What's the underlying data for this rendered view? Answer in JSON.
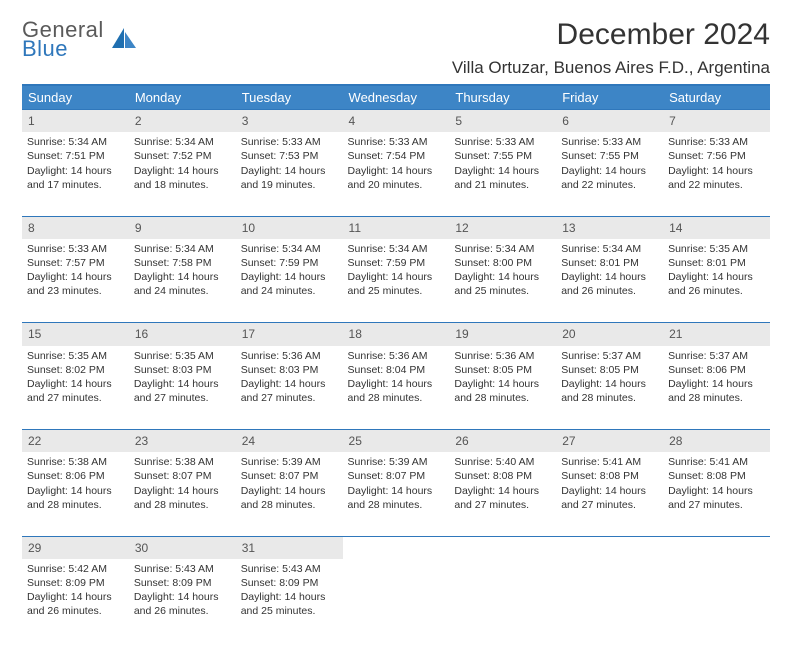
{
  "brand": {
    "line1": "General",
    "line2": "Blue",
    "logo_fill": "#1f6fb0"
  },
  "colors": {
    "header_bg": "#3d85c6",
    "header_text": "#ffffff",
    "border": "#2f77bb",
    "daynum_bg": "#e9e9e9",
    "text": "#333333"
  },
  "title": "December 2024",
  "location": "Villa Ortuzar, Buenos Aires F.D., Argentina",
  "weekdays": [
    "Sunday",
    "Monday",
    "Tuesday",
    "Wednesday",
    "Thursday",
    "Friday",
    "Saturday"
  ],
  "weeks": [
    {
      "nums": [
        "1",
        "2",
        "3",
        "4",
        "5",
        "6",
        "7"
      ],
      "cells": [
        {
          "sunrise": "Sunrise: 5:34 AM",
          "sunset": "Sunset: 7:51 PM",
          "day1": "Daylight: 14 hours",
          "day2": "and 17 minutes."
        },
        {
          "sunrise": "Sunrise: 5:34 AM",
          "sunset": "Sunset: 7:52 PM",
          "day1": "Daylight: 14 hours",
          "day2": "and 18 minutes."
        },
        {
          "sunrise": "Sunrise: 5:33 AM",
          "sunset": "Sunset: 7:53 PM",
          "day1": "Daylight: 14 hours",
          "day2": "and 19 minutes."
        },
        {
          "sunrise": "Sunrise: 5:33 AM",
          "sunset": "Sunset: 7:54 PM",
          "day1": "Daylight: 14 hours",
          "day2": "and 20 minutes."
        },
        {
          "sunrise": "Sunrise: 5:33 AM",
          "sunset": "Sunset: 7:55 PM",
          "day1": "Daylight: 14 hours",
          "day2": "and 21 minutes."
        },
        {
          "sunrise": "Sunrise: 5:33 AM",
          "sunset": "Sunset: 7:55 PM",
          "day1": "Daylight: 14 hours",
          "day2": "and 22 minutes."
        },
        {
          "sunrise": "Sunrise: 5:33 AM",
          "sunset": "Sunset: 7:56 PM",
          "day1": "Daylight: 14 hours",
          "day2": "and 22 minutes."
        }
      ]
    },
    {
      "nums": [
        "8",
        "9",
        "10",
        "11",
        "12",
        "13",
        "14"
      ],
      "cells": [
        {
          "sunrise": "Sunrise: 5:33 AM",
          "sunset": "Sunset: 7:57 PM",
          "day1": "Daylight: 14 hours",
          "day2": "and 23 minutes."
        },
        {
          "sunrise": "Sunrise: 5:34 AM",
          "sunset": "Sunset: 7:58 PM",
          "day1": "Daylight: 14 hours",
          "day2": "and 24 minutes."
        },
        {
          "sunrise": "Sunrise: 5:34 AM",
          "sunset": "Sunset: 7:59 PM",
          "day1": "Daylight: 14 hours",
          "day2": "and 24 minutes."
        },
        {
          "sunrise": "Sunrise: 5:34 AM",
          "sunset": "Sunset: 7:59 PM",
          "day1": "Daylight: 14 hours",
          "day2": "and 25 minutes."
        },
        {
          "sunrise": "Sunrise: 5:34 AM",
          "sunset": "Sunset: 8:00 PM",
          "day1": "Daylight: 14 hours",
          "day2": "and 25 minutes."
        },
        {
          "sunrise": "Sunrise: 5:34 AM",
          "sunset": "Sunset: 8:01 PM",
          "day1": "Daylight: 14 hours",
          "day2": "and 26 minutes."
        },
        {
          "sunrise": "Sunrise: 5:35 AM",
          "sunset": "Sunset: 8:01 PM",
          "day1": "Daylight: 14 hours",
          "day2": "and 26 minutes."
        }
      ]
    },
    {
      "nums": [
        "15",
        "16",
        "17",
        "18",
        "19",
        "20",
        "21"
      ],
      "cells": [
        {
          "sunrise": "Sunrise: 5:35 AM",
          "sunset": "Sunset: 8:02 PM",
          "day1": "Daylight: 14 hours",
          "day2": "and 27 minutes."
        },
        {
          "sunrise": "Sunrise: 5:35 AM",
          "sunset": "Sunset: 8:03 PM",
          "day1": "Daylight: 14 hours",
          "day2": "and 27 minutes."
        },
        {
          "sunrise": "Sunrise: 5:36 AM",
          "sunset": "Sunset: 8:03 PM",
          "day1": "Daylight: 14 hours",
          "day2": "and 27 minutes."
        },
        {
          "sunrise": "Sunrise: 5:36 AM",
          "sunset": "Sunset: 8:04 PM",
          "day1": "Daylight: 14 hours",
          "day2": "and 28 minutes."
        },
        {
          "sunrise": "Sunrise: 5:36 AM",
          "sunset": "Sunset: 8:05 PM",
          "day1": "Daylight: 14 hours",
          "day2": "and 28 minutes."
        },
        {
          "sunrise": "Sunrise: 5:37 AM",
          "sunset": "Sunset: 8:05 PM",
          "day1": "Daylight: 14 hours",
          "day2": "and 28 minutes."
        },
        {
          "sunrise": "Sunrise: 5:37 AM",
          "sunset": "Sunset: 8:06 PM",
          "day1": "Daylight: 14 hours",
          "day2": "and 28 minutes."
        }
      ]
    },
    {
      "nums": [
        "22",
        "23",
        "24",
        "25",
        "26",
        "27",
        "28"
      ],
      "cells": [
        {
          "sunrise": "Sunrise: 5:38 AM",
          "sunset": "Sunset: 8:06 PM",
          "day1": "Daylight: 14 hours",
          "day2": "and 28 minutes."
        },
        {
          "sunrise": "Sunrise: 5:38 AM",
          "sunset": "Sunset: 8:07 PM",
          "day1": "Daylight: 14 hours",
          "day2": "and 28 minutes."
        },
        {
          "sunrise": "Sunrise: 5:39 AM",
          "sunset": "Sunset: 8:07 PM",
          "day1": "Daylight: 14 hours",
          "day2": "and 28 minutes."
        },
        {
          "sunrise": "Sunrise: 5:39 AM",
          "sunset": "Sunset: 8:07 PM",
          "day1": "Daylight: 14 hours",
          "day2": "and 28 minutes."
        },
        {
          "sunrise": "Sunrise: 5:40 AM",
          "sunset": "Sunset: 8:08 PM",
          "day1": "Daylight: 14 hours",
          "day2": "and 27 minutes."
        },
        {
          "sunrise": "Sunrise: 5:41 AM",
          "sunset": "Sunset: 8:08 PM",
          "day1": "Daylight: 14 hours",
          "day2": "and 27 minutes."
        },
        {
          "sunrise": "Sunrise: 5:41 AM",
          "sunset": "Sunset: 8:08 PM",
          "day1": "Daylight: 14 hours",
          "day2": "and 27 minutes."
        }
      ]
    },
    {
      "nums": [
        "29",
        "30",
        "31",
        "",
        "",
        "",
        ""
      ],
      "cells": [
        {
          "sunrise": "Sunrise: 5:42 AM",
          "sunset": "Sunset: 8:09 PM",
          "day1": "Daylight: 14 hours",
          "day2": "and 26 minutes."
        },
        {
          "sunrise": "Sunrise: 5:43 AM",
          "sunset": "Sunset: 8:09 PM",
          "day1": "Daylight: 14 hours",
          "day2": "and 26 minutes."
        },
        {
          "sunrise": "Sunrise: 5:43 AM",
          "sunset": "Sunset: 8:09 PM",
          "day1": "Daylight: 14 hours",
          "day2": "and 25 minutes."
        },
        null,
        null,
        null,
        null
      ]
    }
  ]
}
